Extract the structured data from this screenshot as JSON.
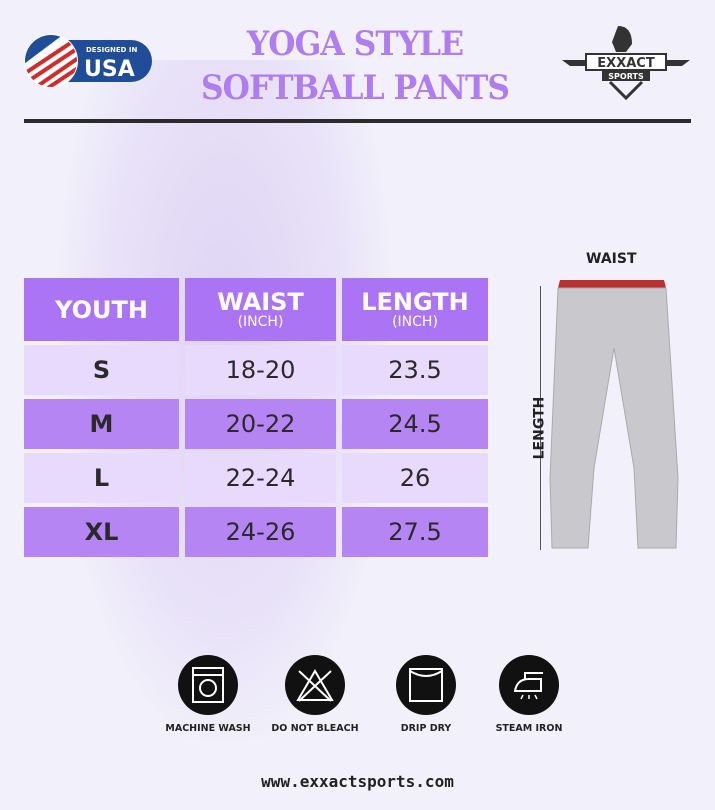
{
  "badge": {
    "small": "DESIGNED IN",
    "big": "USA"
  },
  "title": {
    "line1": "YOGA STYLE",
    "line2": "SOFTBALL PANTS"
  },
  "logo": {
    "text1": "EXXACT",
    "text2": "SPORTS"
  },
  "colors": {
    "title": "#b07cf2",
    "header": "#ab74f5",
    "row_light": "#e8dafc",
    "row_dark": "#b585f3"
  },
  "table": {
    "headers": [
      {
        "label": "YOUTH",
        "unit": ""
      },
      {
        "label": "WAIST",
        "unit": "(INCH)"
      },
      {
        "label": "LENGTH",
        "unit": "(INCH)"
      }
    ],
    "rows": [
      [
        "S",
        "18-20",
        "23.5"
      ],
      [
        "M",
        "20-22",
        "24.5"
      ],
      [
        "L",
        "22-24",
        "26"
      ],
      [
        "XL",
        "24-26",
        "27.5"
      ]
    ]
  },
  "diagram": {
    "waist": "WAIST",
    "length": "LENGTH"
  },
  "care": [
    {
      "icon": "machine-wash-icon",
      "label": "MACHINE WASH"
    },
    {
      "icon": "do-not-bleach-icon",
      "label": "DO NOT BLEACH"
    },
    {
      "icon": "drip-dry-icon",
      "label": "DRIP DRY"
    },
    {
      "icon": "steam-iron-icon",
      "label": "STEAM IRON"
    }
  ],
  "website": "www.exxactsports.com"
}
